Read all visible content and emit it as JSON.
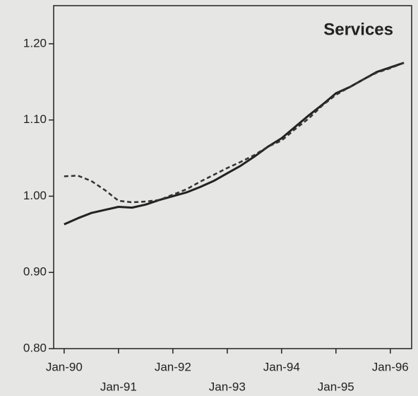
{
  "chart_data": {
    "type": "line",
    "title": "Services",
    "categories": [
      "Jan-90",
      null,
      null,
      null,
      "Jan-91",
      null,
      null,
      null,
      "Jan-92",
      null,
      null,
      null,
      "Jan-93",
      null,
      null,
      null,
      "Jan-94",
      null,
      null,
      null,
      "Jan-95",
      null,
      null,
      null,
      "Jan-96",
      null
    ],
    "series": [
      {
        "color": "#222222",
        "style": "solid",
        "values": [
          0.963,
          0.971,
          0.978,
          0.982,
          0.986,
          0.985,
          0.989,
          0.995,
          1.0,
          1.005,
          1.012,
          1.02,
          1.03,
          1.04,
          1.052,
          1.065,
          1.076,
          1.091,
          1.106,
          1.12,
          1.135,
          1.143,
          1.153,
          1.163,
          1.169,
          1.175
        ]
      },
      {
        "color": "#333333",
        "style": "dashed",
        "values": [
          1.026,
          1.027,
          1.02,
          1.008,
          0.994,
          0.992,
          0.993,
          0.995,
          1.002,
          1.009,
          1.019,
          1.028,
          1.037,
          1.045,
          1.054,
          1.065,
          1.073,
          1.088,
          1.102,
          1.119,
          1.133,
          1.143,
          1.153,
          1.162,
          1.168,
          1.175
        ]
      }
    ],
    "ylim": [
      0.8,
      1.25
    ],
    "yticks": [
      {
        "value": 0.8,
        "label": "0.80"
      },
      {
        "value": 0.9,
        "label": "0.90"
      },
      {
        "value": 1.0,
        "label": "1.00"
      },
      {
        "value": 1.1,
        "label": "1.10"
      },
      {
        "value": 1.2,
        "label": "1.20"
      }
    ]
  }
}
